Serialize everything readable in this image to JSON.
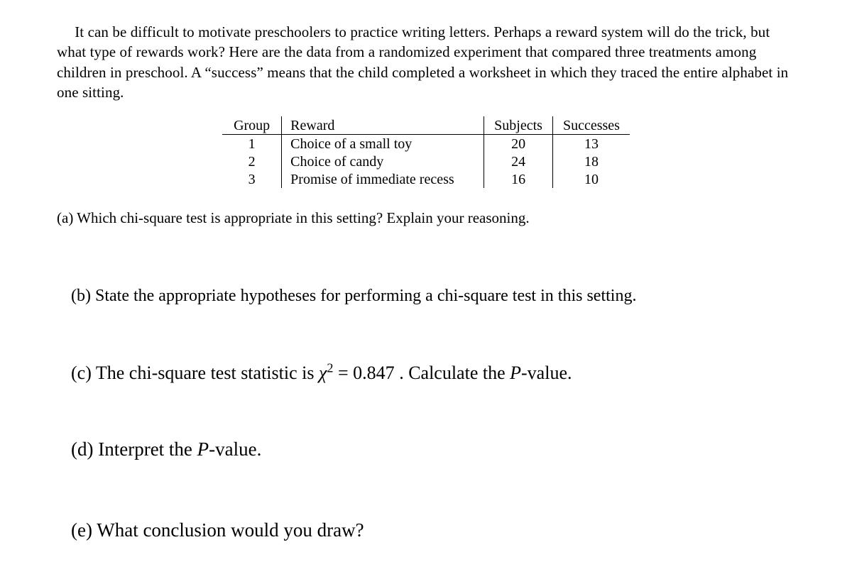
{
  "intro": "It can be difficult to motivate preschoolers to practice writing letters. Perhaps a reward system will do the trick, but what type of rewards work? Here are the data from a randomized experiment that compared three treatments among children in preschool. A “success” means that the child completed a worksheet in which they traced the entire alphabet in one sitting.",
  "table": {
    "headers": {
      "group": "Group",
      "reward": "Reward",
      "subjects": "Subjects",
      "successes": "Successes"
    },
    "rows": [
      {
        "group": "1",
        "reward": "Choice of a small toy",
        "subjects": "20",
        "successes": "13"
      },
      {
        "group": "2",
        "reward": "Choice of candy",
        "subjects": "24",
        "successes": "18"
      },
      {
        "group": "3",
        "reward": "Promise of immediate recess",
        "subjects": "16",
        "successes": "10"
      }
    ]
  },
  "questions": {
    "a": "(a) Which chi-square test is appropriate in this setting? Explain your reasoning.",
    "b": "(b) State the appropriate hypotheses for performing a chi-square test in this setting.",
    "c_pre": "(c) The chi-square test statistic is ",
    "c_chi": "χ",
    "c_sup": "2",
    "c_eq": " = 0.847",
    "c_post": " . Calculate the ",
    "c_pword": "P",
    "c_tail": "-value.",
    "d_pre": "(d) Interpret the ",
    "d_pword": "P",
    "d_tail": "-value.",
    "e": "(e) What conclusion would you draw?"
  },
  "style": {
    "text_color": "#000000",
    "background_color": "#ffffff",
    "font_family": "Times New Roman",
    "border_color": "#000000"
  }
}
